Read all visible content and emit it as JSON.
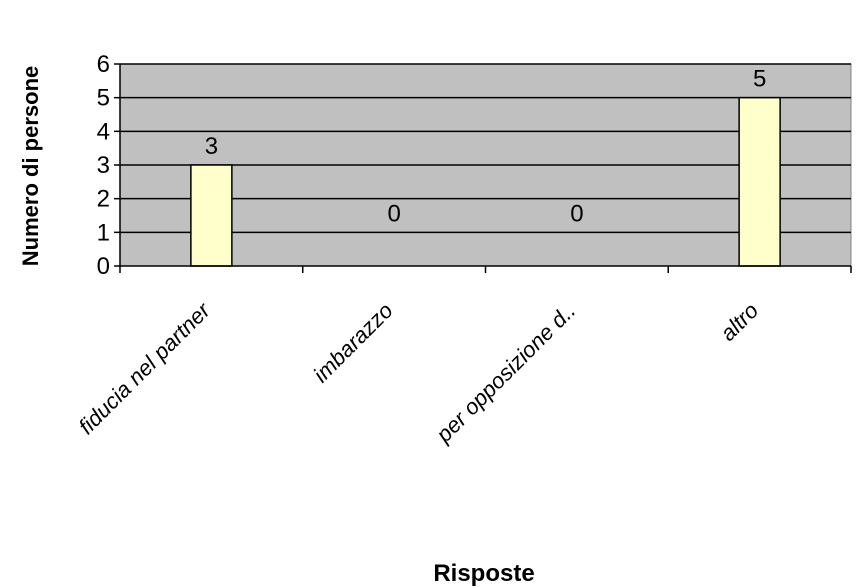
{
  "chart_data": {
    "type": "bar",
    "categories": [
      "fiducia nel partner",
      "imbarazzo",
      "per opposizione d..",
      "altro"
    ],
    "values": [
      3,
      0,
      0,
      5
    ],
    "data_labels": [
      "3",
      "0",
      "0",
      "5"
    ],
    "xlabel": "Risposte",
    "ylabel": "Numero di persone",
    "ylim": [
      0,
      6
    ],
    "yticks": [
      "0",
      "1",
      "2",
      "3",
      "4",
      "5",
      "6"
    ],
    "grid": true,
    "legend": "none",
    "colors": {
      "plot_background": "#c0c0c0",
      "bar_fill": "#ffffcc",
      "bar_stroke": "#000000",
      "gridline": "#000000"
    }
  }
}
